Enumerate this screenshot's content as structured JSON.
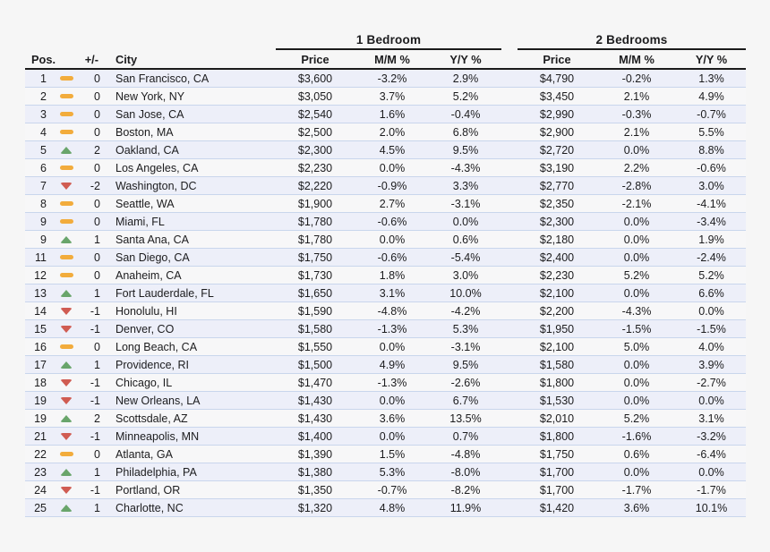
{
  "colors": {
    "page_bg": "#f6f6f6",
    "text": "#1c1c1e",
    "header_rule": "#1b1b1b",
    "row_separator": "#c9d6ec",
    "row_odd_bg": "#edeff9",
    "row_even_bg": "#f7f7f8",
    "trend_up": "#69a56b",
    "trend_same": "#f2ac3c",
    "trend_down": "#d05c52"
  },
  "chart_data": {
    "type": "table",
    "group_headers": {
      "one_bedroom": "1 Bedroom",
      "two_bedrooms": "2 Bedrooms"
    },
    "column_headers": {
      "pos": "Pos.",
      "change": "+/-",
      "city": "City",
      "price": "Price",
      "mm": "M/M %",
      "yy": "Y/Y %"
    },
    "rows": [
      {
        "pos": "1",
        "trend": "same",
        "change": "0",
        "city": "San Francisco, CA",
        "br1_price": "$3,600",
        "br1_mm": "-3.2%",
        "br1_yy": "2.9%",
        "br2_price": "$4,790",
        "br2_mm": "-0.2%",
        "br2_yy": "1.3%"
      },
      {
        "pos": "2",
        "trend": "same",
        "change": "0",
        "city": "New York, NY",
        "br1_price": "$3,050",
        "br1_mm": "3.7%",
        "br1_yy": "5.2%",
        "br2_price": "$3,450",
        "br2_mm": "2.1%",
        "br2_yy": "4.9%"
      },
      {
        "pos": "3",
        "trend": "same",
        "change": "0",
        "city": "San Jose, CA",
        "br1_price": "$2,540",
        "br1_mm": "1.6%",
        "br1_yy": "-0.4%",
        "br2_price": "$2,990",
        "br2_mm": "-0.3%",
        "br2_yy": "-0.7%"
      },
      {
        "pos": "4",
        "trend": "same",
        "change": "0",
        "city": "Boston, MA",
        "br1_price": "$2,500",
        "br1_mm": "2.0%",
        "br1_yy": "6.8%",
        "br2_price": "$2,900",
        "br2_mm": "2.1%",
        "br2_yy": "5.5%"
      },
      {
        "pos": "5",
        "trend": "up",
        "change": "2",
        "city": "Oakland, CA",
        "br1_price": "$2,300",
        "br1_mm": "4.5%",
        "br1_yy": "9.5%",
        "br2_price": "$2,720",
        "br2_mm": "0.0%",
        "br2_yy": "8.8%"
      },
      {
        "pos": "6",
        "trend": "same",
        "change": "0",
        "city": "Los Angeles, CA",
        "br1_price": "$2,230",
        "br1_mm": "0.0%",
        "br1_yy": "-4.3%",
        "br2_price": "$3,190",
        "br2_mm": "2.2%",
        "br2_yy": "-0.6%"
      },
      {
        "pos": "7",
        "trend": "down",
        "change": "-2",
        "city": "Washington, DC",
        "br1_price": "$2,220",
        "br1_mm": "-0.9%",
        "br1_yy": "3.3%",
        "br2_price": "$2,770",
        "br2_mm": "-2.8%",
        "br2_yy": "3.0%"
      },
      {
        "pos": "8",
        "trend": "same",
        "change": "0",
        "city": "Seattle, WA",
        "br1_price": "$1,900",
        "br1_mm": "2.7%",
        "br1_yy": "-3.1%",
        "br2_price": "$2,350",
        "br2_mm": "-2.1%",
        "br2_yy": "-4.1%"
      },
      {
        "pos": "9",
        "trend": "same",
        "change": "0",
        "city": "Miami, FL",
        "br1_price": "$1,780",
        "br1_mm": "-0.6%",
        "br1_yy": "0.0%",
        "br2_price": "$2,300",
        "br2_mm": "0.0%",
        "br2_yy": "-3.4%"
      },
      {
        "pos": "9",
        "trend": "up",
        "change": "1",
        "city": "Santa Ana, CA",
        "br1_price": "$1,780",
        "br1_mm": "0.0%",
        "br1_yy": "0.6%",
        "br2_price": "$2,180",
        "br2_mm": "0.0%",
        "br2_yy": "1.9%"
      },
      {
        "pos": "11",
        "trend": "same",
        "change": "0",
        "city": "San Diego, CA",
        "br1_price": "$1,750",
        "br1_mm": "-0.6%",
        "br1_yy": "-5.4%",
        "br2_price": "$2,400",
        "br2_mm": "0.0%",
        "br2_yy": "-2.4%"
      },
      {
        "pos": "12",
        "trend": "same",
        "change": "0",
        "city": "Anaheim, CA",
        "br1_price": "$1,730",
        "br1_mm": "1.8%",
        "br1_yy": "3.0%",
        "br2_price": "$2,230",
        "br2_mm": "5.2%",
        "br2_yy": "5.2%"
      },
      {
        "pos": "13",
        "trend": "up",
        "change": "1",
        "city": "Fort Lauderdale, FL",
        "br1_price": "$1,650",
        "br1_mm": "3.1%",
        "br1_yy": "10.0%",
        "br2_price": "$2,100",
        "br2_mm": "0.0%",
        "br2_yy": "6.6%"
      },
      {
        "pos": "14",
        "trend": "down",
        "change": "-1",
        "city": "Honolulu, HI",
        "br1_price": "$1,590",
        "br1_mm": "-4.8%",
        "br1_yy": "-4.2%",
        "br2_price": "$2,200",
        "br2_mm": "-4.3%",
        "br2_yy": "0.0%"
      },
      {
        "pos": "15",
        "trend": "down",
        "change": "-1",
        "city": "Denver, CO",
        "br1_price": "$1,580",
        "br1_mm": "-1.3%",
        "br1_yy": "5.3%",
        "br2_price": "$1,950",
        "br2_mm": "-1.5%",
        "br2_yy": "-1.5%"
      },
      {
        "pos": "16",
        "trend": "same",
        "change": "0",
        "city": "Long Beach, CA",
        "br1_price": "$1,550",
        "br1_mm": "0.0%",
        "br1_yy": "-3.1%",
        "br2_price": "$2,100",
        "br2_mm": "5.0%",
        "br2_yy": "4.0%"
      },
      {
        "pos": "17",
        "trend": "up",
        "change": "1",
        "city": "Providence, RI",
        "br1_price": "$1,500",
        "br1_mm": "4.9%",
        "br1_yy": "9.5%",
        "br2_price": "$1,580",
        "br2_mm": "0.0%",
        "br2_yy": "3.9%"
      },
      {
        "pos": "18",
        "trend": "down",
        "change": "-1",
        "city": "Chicago, IL",
        "br1_price": "$1,470",
        "br1_mm": "-1.3%",
        "br1_yy": "-2.6%",
        "br2_price": "$1,800",
        "br2_mm": "0.0%",
        "br2_yy": "-2.7%"
      },
      {
        "pos": "19",
        "trend": "down",
        "change": "-1",
        "city": "New Orleans, LA",
        "br1_price": "$1,430",
        "br1_mm": "0.0%",
        "br1_yy": "6.7%",
        "br2_price": "$1,530",
        "br2_mm": "0.0%",
        "br2_yy": "0.0%"
      },
      {
        "pos": "19",
        "trend": "up",
        "change": "2",
        "city": "Scottsdale, AZ",
        "br1_price": "$1,430",
        "br1_mm": "3.6%",
        "br1_yy": "13.5%",
        "br2_price": "$2,010",
        "br2_mm": "5.2%",
        "br2_yy": "3.1%"
      },
      {
        "pos": "21",
        "trend": "down",
        "change": "-1",
        "city": "Minneapolis, MN",
        "br1_price": "$1,400",
        "br1_mm": "0.0%",
        "br1_yy": "0.7%",
        "br2_price": "$1,800",
        "br2_mm": "-1.6%",
        "br2_yy": "-3.2%"
      },
      {
        "pos": "22",
        "trend": "same",
        "change": "0",
        "city": "Atlanta, GA",
        "br1_price": "$1,390",
        "br1_mm": "1.5%",
        "br1_yy": "-4.8%",
        "br2_price": "$1,750",
        "br2_mm": "0.6%",
        "br2_yy": "-6.4%"
      },
      {
        "pos": "23",
        "trend": "up",
        "change": "1",
        "city": "Philadelphia, PA",
        "br1_price": "$1,380",
        "br1_mm": "5.3%",
        "br1_yy": "-8.0%",
        "br2_price": "$1,700",
        "br2_mm": "0.0%",
        "br2_yy": "0.0%"
      },
      {
        "pos": "24",
        "trend": "down",
        "change": "-1",
        "city": "Portland, OR",
        "br1_price": "$1,350",
        "br1_mm": "-0.7%",
        "br1_yy": "-8.2%",
        "br2_price": "$1,700",
        "br2_mm": "-1.7%",
        "br2_yy": "-1.7%"
      },
      {
        "pos": "25",
        "trend": "up",
        "change": "1",
        "city": "Charlotte, NC",
        "br1_price": "$1,320",
        "br1_mm": "4.8%",
        "br1_yy": "11.9%",
        "br2_price": "$1,420",
        "br2_mm": "3.6%",
        "br2_yy": "10.1%"
      }
    ]
  }
}
